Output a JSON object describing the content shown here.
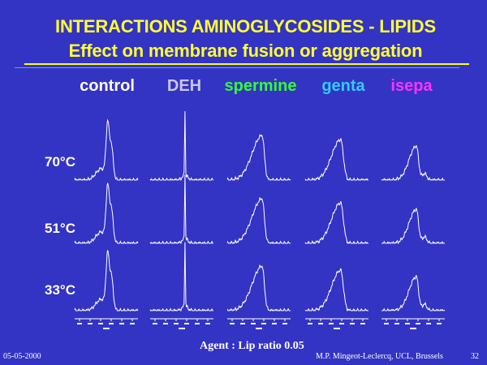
{
  "slide": {
    "title_line1": "INTERACTIONS AMINOGLYCOSIDES - LIPIDS",
    "title_line2": "Effect on membrane fusion or aggregation"
  },
  "columns": [
    {
      "label": "control",
      "color": "#ffffff"
    },
    {
      "label": "DEH",
      "color": "#c8c8e0"
    },
    {
      "label": "spermine",
      "color": "#33ff33"
    },
    {
      "label": "genta",
      "color": "#33ccff"
    },
    {
      "label": "isepa",
      "color": "#ff33ff"
    }
  ],
  "rows": [
    {
      "label": "70°C"
    },
    {
      "label": "51°C"
    },
    {
      "label": "33°C"
    }
  ],
  "footer": {
    "date": "05-05-2000",
    "agent_ratio": "Agent : Lip ratio 0.05",
    "author": "M.P. Mingeot-Leclercq, UCL, Brussels",
    "page": "32"
  }
}
